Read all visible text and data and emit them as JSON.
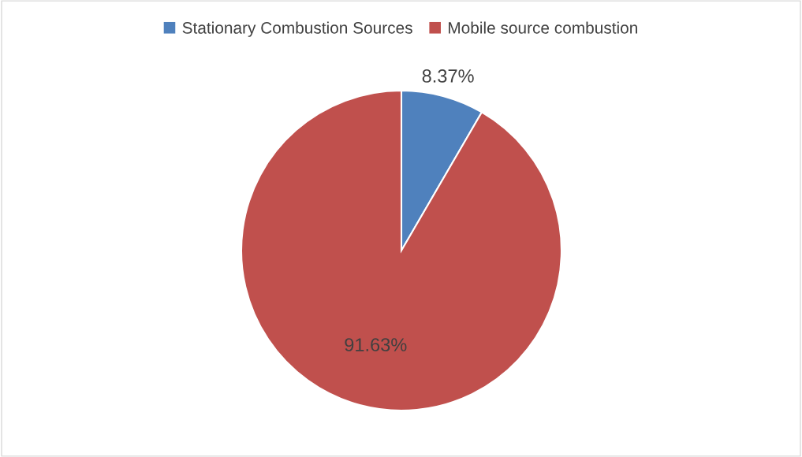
{
  "chart_data": {
    "type": "pie",
    "categories": [
      "Stationary Combustion Sources",
      "Mobile source combustion"
    ],
    "values": [
      8.37,
      91.63
    ],
    "colors": [
      "#4f81bd",
      "#c0504d"
    ],
    "value_labels": [
      "8.37%",
      "91.63%"
    ],
    "legend": "top"
  }
}
